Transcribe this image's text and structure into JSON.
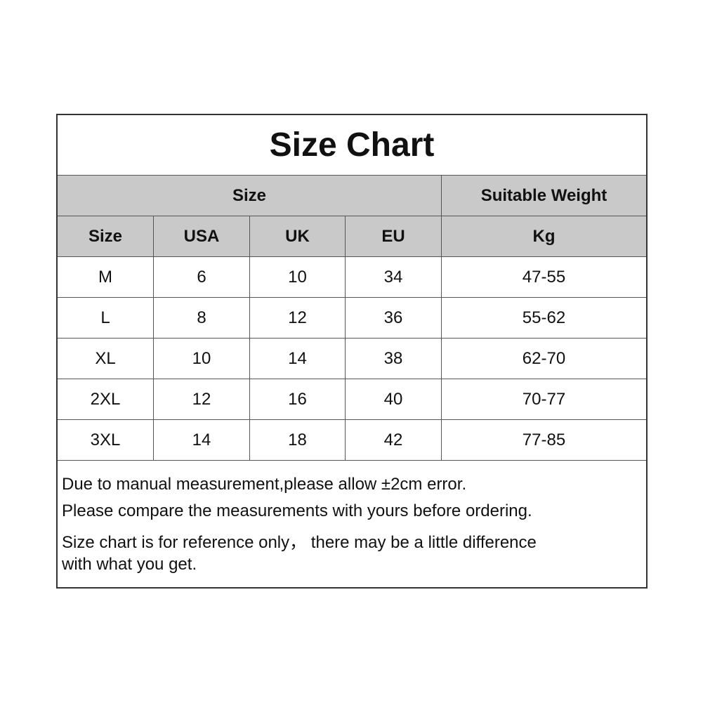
{
  "title": "Size Chart",
  "header_groups": [
    "Size",
    "Suitable Weight"
  ],
  "columns": [
    "Size",
    "USA",
    "UK",
    "EU",
    "Kg"
  ],
  "rows": [
    [
      "M",
      "6",
      "10",
      "34",
      "47-55"
    ],
    [
      "L",
      "8",
      "12",
      "36",
      "55-62"
    ],
    [
      "XL",
      "10",
      "14",
      "38",
      "62-70"
    ],
    [
      "2XL",
      "12",
      "16",
      "40",
      "70-77"
    ],
    [
      "3XL",
      "14",
      "18",
      "42",
      "77-85"
    ]
  ],
  "notes": [
    "Due to manual measurement,please allow ±2cm error.",
    "Please compare the measurements with yours before ordering.",
    "Size chart is for reference only， there may be a little difference",
    "with what you get."
  ]
}
